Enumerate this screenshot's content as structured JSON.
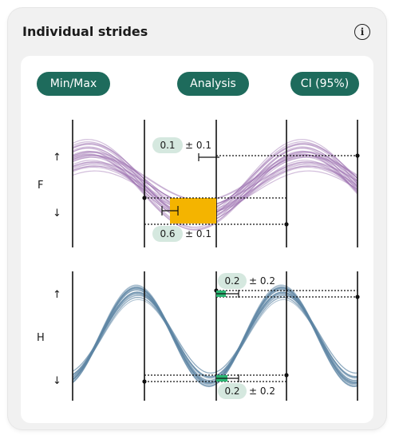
{
  "card": {
    "title": "Individual strides",
    "info_icon": "info-icon",
    "info_glyph": "i"
  },
  "buttons": {
    "min_max": "Min/Max",
    "analysis": "Analysis",
    "ci": "CI (95%)"
  },
  "panels": {
    "f": {
      "label": "F",
      "up_arrow": "↑",
      "down_arrow": "↓",
      "line_color": "#9b6fb0",
      "upper_value": "0.1",
      "upper_sd": "± 0.1",
      "lower_value": "0.6",
      "lower_sd": "± 0.1",
      "fill_color": "#f4b400"
    },
    "h": {
      "label": "H",
      "up_arrow": "↑",
      "down_arrow": "↓",
      "line_color": "#5e86a3",
      "upper_value": "0.2",
      "upper_sd": "± 0.2",
      "lower_value": "0.2",
      "lower_sd": "± 0.2",
      "fill_color": "#2bb673"
    }
  },
  "colors": {
    "pill_bg": "#1e6b5c",
    "value_pill_bg": "#d5e8df"
  }
}
